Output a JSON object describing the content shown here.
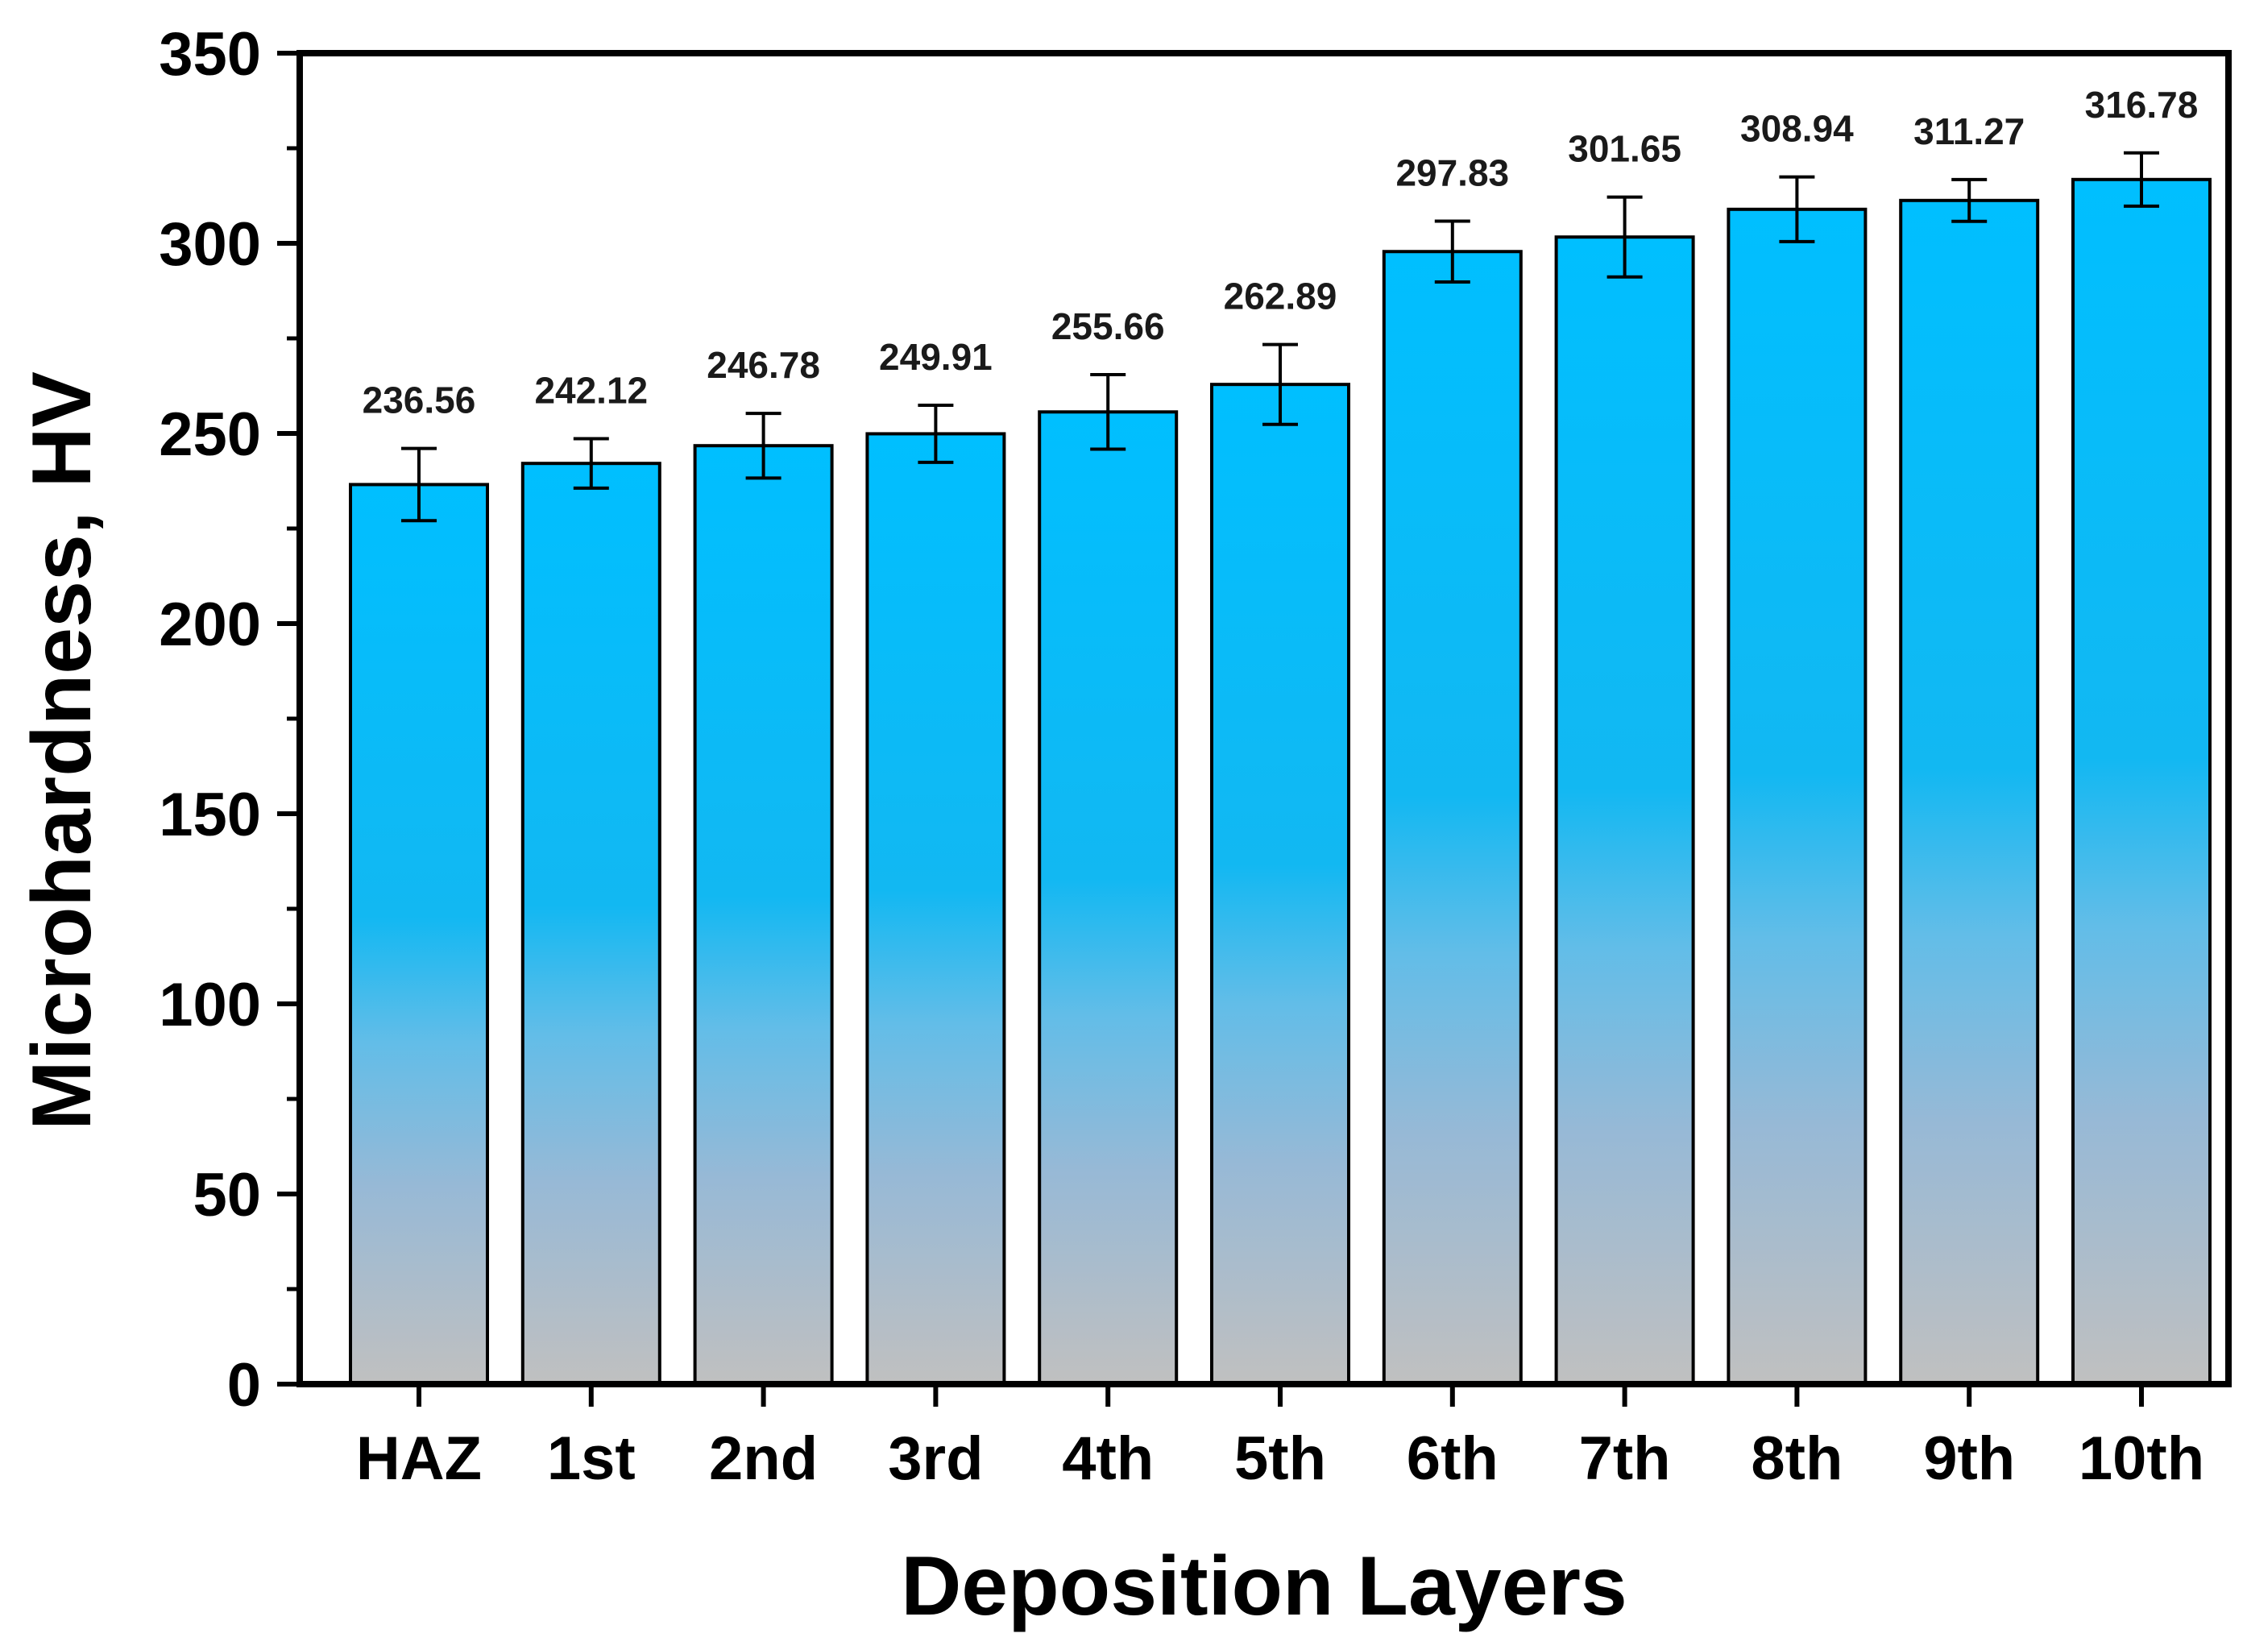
{
  "chart_data": {
    "type": "bar",
    "title": "",
    "xlabel": "Deposition Layers",
    "ylabel": "Microhardness, HV",
    "categories": [
      "HAZ",
      "1st",
      "2nd",
      "3rd",
      "4th",
      "5th",
      "6th",
      "7th",
      "8th",
      "9th",
      "10th"
    ],
    "values": [
      236.56,
      242.12,
      246.78,
      249.91,
      255.66,
      262.89,
      297.83,
      301.65,
      308.94,
      311.27,
      316.78
    ],
    "value_labels": [
      "236.56",
      "242.12",
      "246.78",
      "249.91",
      "255.66",
      "262.89",
      "297.83",
      "301.65",
      "308.94",
      "311.27",
      "316.78"
    ],
    "errors": [
      9.5,
      6.5,
      8.5,
      7.5,
      9.8,
      10.5,
      8.0,
      10.5,
      8.5,
      5.5,
      7.0
    ],
    "ylim": [
      0,
      350
    ],
    "yticks": [
      0,
      50,
      100,
      150,
      200,
      250,
      300,
      350
    ],
    "ytick_labels": [
      "0",
      "50",
      "100",
      "150",
      "200",
      "250",
      "300",
      "350"
    ],
    "grid": false,
    "legend": "none",
    "colors": {
      "bar_top": "#00BFFF",
      "bar_bottom": "#C0C0C0",
      "bar_edge": "#000000",
      "error_bar": "#000000",
      "axis": "#000000"
    }
  }
}
